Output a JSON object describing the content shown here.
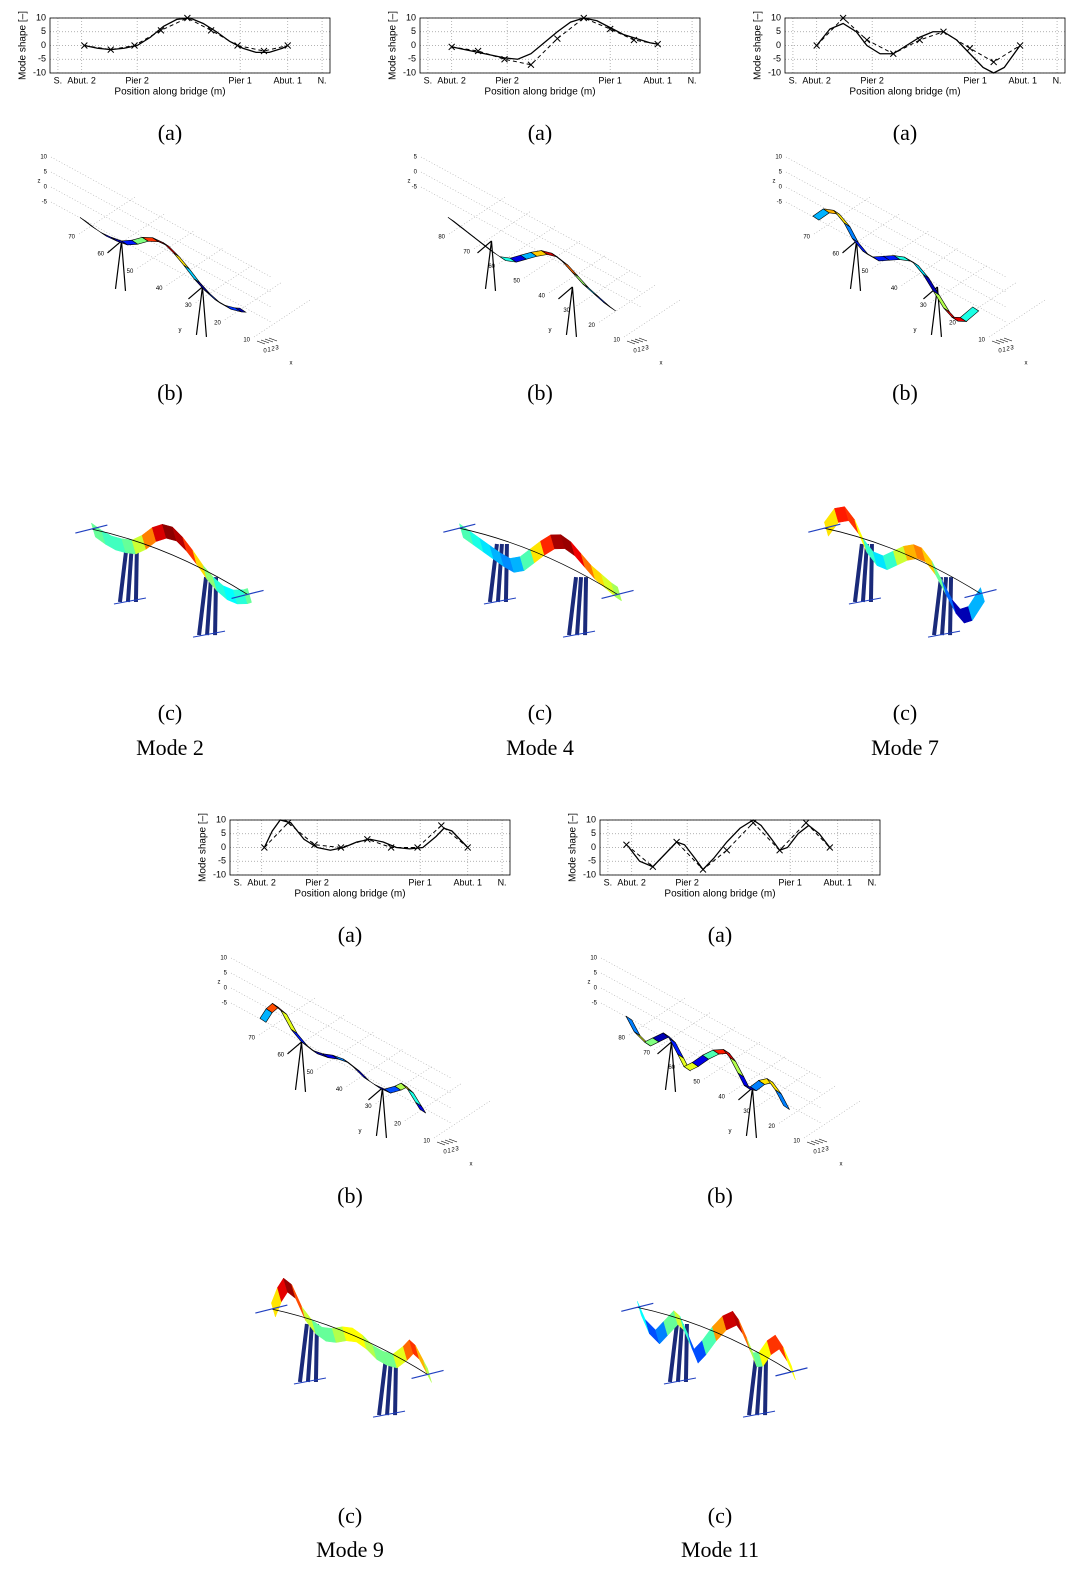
{
  "chart_data": [
    {
      "type": "line",
      "ylabel": "Mode shape [–]",
      "xlabel": "Position along bridge (m)",
      "xlim": [
        -3,
        103
      ],
      "ylim": [
        -10,
        10
      ],
      "yticks": [
        10,
        5,
        0,
        -5,
        -10
      ],
      "xticks": [
        {
          "value": 0,
          "label": "S."
        },
        {
          "value": 9,
          "label": "Abut. 2"
        },
        {
          "value": 30,
          "label": "Pier 2"
        },
        {
          "value": 69,
          "label": "Pier 1"
        },
        {
          "value": 87,
          "label": "Abut. 1"
        },
        {
          "value": 100,
          "label": "N."
        }
      ],
      "grid": true,
      "series": [
        {
          "color": "#000000",
          "style": "dashed",
          "marker": "x",
          "x": [
            10,
            20,
            29,
            39,
            49,
            58,
            68,
            78,
            87
          ],
          "values": [
            0,
            -1.5,
            0,
            5.5,
            10,
            5.5,
            0,
            -2,
            0
          ]
        },
        {
          "color": "#000000",
          "style": "solid",
          "x": [
            10,
            15,
            20,
            25,
            30,
            35,
            40,
            45,
            50,
            55,
            60,
            65,
            70,
            75,
            80,
            85,
            87
          ],
          "values": [
            0,
            -1,
            -1.5,
            -1,
            0,
            3,
            7,
            9.5,
            10,
            8,
            5,
            1.5,
            -1,
            -2.5,
            -2.5,
            -1,
            0
          ]
        }
      ]
    },
    {
      "type": "line",
      "ylabel": "Mode shape [–]",
      "xlabel": "Position along bridge (m)",
      "xlim": [
        -3,
        103
      ],
      "ylim": [
        -10,
        10
      ],
      "yticks": [
        10,
        5,
        0,
        -5,
        -10
      ],
      "xticks": [
        {
          "value": 0,
          "label": "S."
        },
        {
          "value": 9,
          "label": "Abut. 2"
        },
        {
          "value": 30,
          "label": "Pier 2"
        },
        {
          "value": 69,
          "label": "Pier 1"
        },
        {
          "value": 87,
          "label": "Abut. 1"
        },
        {
          "value": 100,
          "label": "N."
        }
      ],
      "grid": true,
      "series": [
        {
          "color": "#000000",
          "style": "dashed",
          "marker": "x",
          "x": [
            9,
            19,
            29,
            39,
            49,
            59,
            69,
            78,
            87
          ],
          "values": [
            -0.5,
            -2,
            -5,
            -7,
            2.5,
            10,
            6,
            2,
            0.5
          ]
        },
        {
          "color": "#000000",
          "style": "solid",
          "x": [
            9,
            14,
            19,
            24,
            29,
            34,
            39,
            44,
            49,
            54,
            59,
            64,
            69,
            74,
            79,
            84,
            87
          ],
          "values": [
            -0.5,
            -1.5,
            -2.5,
            -3.5,
            -4.5,
            -5,
            -3,
            1,
            5,
            8.5,
            10,
            9,
            6.5,
            4,
            2.5,
            1,
            0.5
          ]
        }
      ]
    },
    {
      "type": "line",
      "ylabel": "Mode shape [–]",
      "xlabel": "Position along bridge (m)",
      "xlim": [
        -3,
        103
      ],
      "ylim": [
        -10,
        10
      ],
      "yticks": [
        10,
        5,
        0,
        -5,
        -10
      ],
      "xticks": [
        {
          "value": 0,
          "label": "S."
        },
        {
          "value": 9,
          "label": "Abut. 2"
        },
        {
          "value": 30,
          "label": "Pier 2"
        },
        {
          "value": 69,
          "label": "Pier 1"
        },
        {
          "value": 87,
          "label": "Abut. 1"
        },
        {
          "value": 100,
          "label": "N."
        }
      ],
      "grid": true,
      "series": [
        {
          "color": "#000000",
          "style": "dashed",
          "marker": "x",
          "x": [
            9,
            19,
            28,
            38,
            48,
            57,
            67,
            76,
            86
          ],
          "values": [
            0,
            10,
            2,
            -3,
            2,
            5,
            -1,
            -6,
            0
          ]
        },
        {
          "color": "#000000",
          "style": "solid",
          "x": [
            9,
            14,
            19,
            24,
            28,
            33,
            38,
            43,
            48,
            53,
            57,
            62,
            67,
            72,
            76,
            80,
            86
          ],
          "values": [
            0,
            6,
            8,
            5,
            0,
            -3,
            -3,
            0,
            3,
            5,
            5,
            2,
            -3,
            -8,
            -10,
            -8,
            0
          ]
        }
      ]
    },
    {
      "type": "line",
      "ylabel": "Mode shape [–]",
      "xlabel": "Position along bridge (m)",
      "xlim": [
        -3,
        103
      ],
      "ylim": [
        -10,
        10
      ],
      "yticks": [
        10,
        5,
        0,
        -5,
        -10
      ],
      "xticks": [
        {
          "value": 0,
          "label": "S."
        },
        {
          "value": 9,
          "label": "Abut. 2"
        },
        {
          "value": 30,
          "label": "Pier 2"
        },
        {
          "value": 69,
          "label": "Pier 1"
        },
        {
          "value": 87,
          "label": "Abut. 1"
        },
        {
          "value": 100,
          "label": "N."
        }
      ],
      "grid": true,
      "series": [
        {
          "color": "#000000",
          "style": "dashed",
          "marker": "x",
          "x": [
            10,
            19,
            29,
            39,
            49,
            58,
            68,
            77,
            87
          ],
          "values": [
            0,
            9,
            1,
            0,
            3,
            0,
            0,
            8,
            0
          ]
        },
        {
          "color": "#000000",
          "style": "solid",
          "x": [
            10,
            13,
            16,
            20,
            25,
            30,
            35,
            40,
            45,
            50,
            55,
            60,
            65,
            70,
            75,
            78,
            81,
            85,
            87
          ],
          "values": [
            0,
            6,
            10,
            9,
            3,
            0,
            -1,
            0,
            2,
            3,
            2,
            0,
            -0.5,
            0,
            4,
            7,
            6,
            2,
            0
          ]
        }
      ]
    },
    {
      "type": "line",
      "ylabel": "Mode shape [–]",
      "xlabel": "Position along bridge (m)",
      "xlim": [
        -3,
        103
      ],
      "ylim": [
        -10,
        10
      ],
      "yticks": [
        10,
        5,
        0,
        -5,
        -10
      ],
      "xticks": [
        {
          "value": 0,
          "label": "S."
        },
        {
          "value": 9,
          "label": "Abut. 2"
        },
        {
          "value": 30,
          "label": "Pier 2"
        },
        {
          "value": 69,
          "label": "Pier 1"
        },
        {
          "value": 87,
          "label": "Abut. 1"
        },
        {
          "value": 100,
          "label": "N."
        }
      ],
      "grid": true,
      "series": [
        {
          "color": "#000000",
          "style": "dashed",
          "marker": "x",
          "x": [
            7,
            17,
            26,
            36,
            45,
            55,
            65,
            75,
            84
          ],
          "values": [
            1,
            -7,
            2,
            -8,
            -1,
            9,
            -1,
            9,
            0
          ]
        },
        {
          "color": "#000000",
          "style": "solid",
          "x": [
            8,
            12,
            17,
            21,
            26,
            29,
            33,
            36,
            40,
            45,
            50,
            55,
            58,
            62,
            65,
            68,
            72,
            76,
            80,
            84
          ],
          "values": [
            0,
            -5,
            -7,
            -3,
            2,
            1,
            -4,
            -8,
            -4,
            2,
            7,
            10,
            8,
            3,
            -1,
            0,
            5,
            8,
            5,
            0
          ]
        }
      ]
    }
  ],
  "figure": {
    "panels": [
      {
        "caption_a": "(a)",
        "caption_b": "(b)",
        "caption_c": "(c)",
        "mode": "Mode 2",
        "b_zticks": [
          10,
          5,
          0,
          -5
        ],
        "b_yticks": [
          70,
          60,
          50,
          40,
          30,
          20,
          10
        ],
        "b_xticks": [
          0,
          1,
          2,
          3
        ],
        "b_xlabel": "x",
        "b_ylabel": "y",
        "b_zlabel": "z"
      },
      {
        "caption_a": "(a)",
        "caption_b": "(b)",
        "caption_c": "(c)",
        "mode": "Mode 4",
        "b_zticks": [
          5,
          0,
          -5
        ],
        "b_yticks": [
          80,
          70,
          60,
          50,
          40,
          30,
          20,
          10
        ],
        "b_xticks": [
          0,
          1,
          2,
          3
        ],
        "b_xlabel": "x",
        "b_ylabel": "y",
        "b_zlabel": "z"
      },
      {
        "caption_a": "(a)",
        "caption_b": "(b)",
        "caption_c": "(c)",
        "mode": "Mode 7",
        "b_zticks": [
          10,
          5,
          0,
          -5
        ],
        "b_yticks": [
          70,
          60,
          50,
          40,
          30,
          20,
          10
        ],
        "b_xticks": [
          0,
          1,
          2,
          3
        ],
        "b_xlabel": "x",
        "b_ylabel": "y",
        "b_zlabel": "z"
      },
      {
        "caption_a": "(a)",
        "caption_b": "(b)",
        "caption_c": "(c)",
        "mode": "Mode 9",
        "b_zticks": [
          10,
          5,
          0,
          -5
        ],
        "b_yticks": [
          70,
          60,
          50,
          40,
          30,
          20,
          10
        ],
        "b_xticks": [
          0,
          1,
          2,
          3
        ],
        "b_xlabel": "x",
        "b_ylabel": "y",
        "b_zlabel": "z"
      },
      {
        "caption_a": "(a)",
        "caption_b": "(b)",
        "caption_c": "(c)",
        "mode": "Mode 11",
        "b_zticks": [
          10,
          5,
          0,
          -5
        ],
        "b_yticks": [
          80,
          70,
          60,
          50,
          40,
          30,
          20,
          10
        ],
        "b_xticks": [
          0,
          1,
          2,
          3
        ],
        "b_xlabel": "x",
        "b_ylabel": "y",
        "b_zlabel": "z"
      }
    ]
  }
}
